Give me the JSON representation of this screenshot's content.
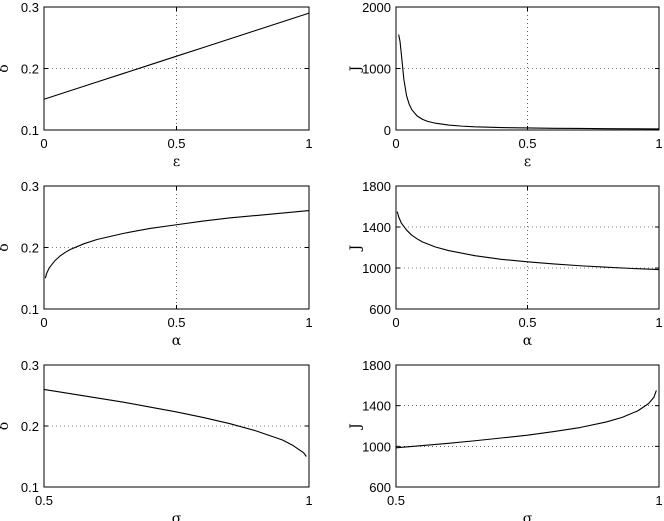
{
  "chart_data": [
    {
      "type": "line",
      "xlabel": "ε",
      "ylabel": "δ",
      "xlim": [
        0,
        1
      ],
      "ylim": [
        0.1,
        0.3
      ],
      "xticks": [
        0,
        0.5,
        1
      ],
      "xtick_labels": [
        "0",
        "0.5",
        "1"
      ],
      "yticks": [
        0.1,
        0.2,
        0.3
      ],
      "ytick_labels": [
        "0.1",
        "0.2",
        "0.3"
      ],
      "grid": true,
      "x": [
        0,
        0.1,
        0.2,
        0.3,
        0.4,
        0.5,
        0.6,
        0.7,
        0.8,
        0.9,
        1.0
      ],
      "y": [
        0.15,
        0.164,
        0.178,
        0.192,
        0.206,
        0.22,
        0.234,
        0.248,
        0.262,
        0.276,
        0.29
      ]
    },
    {
      "type": "line",
      "xlabel": "ε",
      "ylabel": "J",
      "xlim": [
        0,
        1
      ],
      "ylim": [
        0,
        2000
      ],
      "xticks": [
        0,
        0.5,
        1
      ],
      "xtick_labels": [
        "0",
        "0.5",
        "1"
      ],
      "yticks": [
        0,
        1000,
        2000
      ],
      "ytick_labels": [
        "0",
        "1000",
        "2000"
      ],
      "grid": true,
      "x": [
        0.01,
        0.015,
        0.02,
        0.03,
        0.04,
        0.05,
        0.06,
        0.08,
        0.1,
        0.12,
        0.15,
        0.2,
        0.25,
        0.3,
        0.4,
        0.5,
        0.6,
        0.7,
        0.8,
        0.9,
        1.0
      ],
      "y": [
        1550,
        1450,
        1250,
        820,
        560,
        420,
        330,
        230,
        175,
        140,
        110,
        80,
        63,
        52,
        40,
        33,
        28,
        25,
        22,
        20,
        18
      ]
    },
    {
      "type": "line",
      "xlabel": "α",
      "ylabel": "δ",
      "xlim": [
        0,
        1
      ],
      "ylim": [
        0.1,
        0.3
      ],
      "xticks": [
        0,
        0.5,
        1
      ],
      "xtick_labels": [
        "0",
        "0.5",
        "1"
      ],
      "yticks": [
        0.1,
        0.2,
        0.3
      ],
      "ytick_labels": [
        "0.1",
        "0.2",
        "0.3"
      ],
      "grid": true,
      "x": [
        0.005,
        0.01,
        0.02,
        0.04,
        0.06,
        0.08,
        0.1,
        0.15,
        0.2,
        0.3,
        0.4,
        0.5,
        0.6,
        0.7,
        0.8,
        0.9,
        1.0
      ],
      "y": [
        0.15,
        0.158,
        0.167,
        0.178,
        0.186,
        0.192,
        0.197,
        0.206,
        0.213,
        0.223,
        0.231,
        0.237,
        0.243,
        0.248,
        0.252,
        0.256,
        0.26
      ]
    },
    {
      "type": "line",
      "xlabel": "α",
      "ylabel": "J",
      "xlim": [
        0,
        1
      ],
      "ylim": [
        600,
        1800
      ],
      "xticks": [
        0,
        0.5,
        1
      ],
      "xtick_labels": [
        "0",
        "0.5",
        "1"
      ],
      "yticks": [
        600,
        1000,
        1400,
        1800
      ],
      "ytick_labels": [
        "600",
        "1000",
        "1400",
        "1800"
      ],
      "grid": true,
      "x": [
        0.005,
        0.01,
        0.02,
        0.04,
        0.06,
        0.08,
        0.1,
        0.15,
        0.2,
        0.3,
        0.4,
        0.5,
        0.6,
        0.7,
        0.8,
        0.9,
        1.0
      ],
      "y": [
        1550,
        1500,
        1440,
        1370,
        1320,
        1285,
        1255,
        1205,
        1170,
        1120,
        1085,
        1060,
        1040,
        1022,
        1008,
        995,
        985
      ]
    },
    {
      "type": "line",
      "xlabel": "σ",
      "ylabel": "δ",
      "xlim": [
        0.5,
        1
      ],
      "ylim": [
        0.1,
        0.3
      ],
      "xticks": [
        0.5,
        1
      ],
      "xtick_labels": [
        "0.5",
        "1"
      ],
      "yticks": [
        0.1,
        0.2,
        0.3
      ],
      "ytick_labels": [
        "0.1",
        "0.2",
        "0.3"
      ],
      "grid": true,
      "x": [
        0.5,
        0.55,
        0.6,
        0.65,
        0.7,
        0.75,
        0.8,
        0.85,
        0.9,
        0.95,
        0.97,
        0.99,
        0.995
      ],
      "y": [
        0.26,
        0.253,
        0.246,
        0.239,
        0.231,
        0.223,
        0.214,
        0.204,
        0.192,
        0.177,
        0.168,
        0.156,
        0.15
      ]
    },
    {
      "type": "line",
      "xlabel": "σ",
      "ylabel": "J",
      "xlim": [
        0.5,
        1
      ],
      "ylim": [
        600,
        1800
      ],
      "xticks": [
        0.5,
        1
      ],
      "xtick_labels": [
        "0.5",
        "1"
      ],
      "yticks": [
        600,
        1000,
        1400,
        1800
      ],
      "ytick_labels": [
        "600",
        "1000",
        "1400",
        "1800"
      ],
      "grid": true,
      "x": [
        0.5,
        0.55,
        0.6,
        0.65,
        0.7,
        0.75,
        0.8,
        0.85,
        0.9,
        0.93,
        0.96,
        0.98,
        0.99,
        0.995
      ],
      "y": [
        985,
        1008,
        1030,
        1055,
        1082,
        1110,
        1145,
        1185,
        1240,
        1285,
        1350,
        1420,
        1480,
        1550
      ]
    }
  ]
}
